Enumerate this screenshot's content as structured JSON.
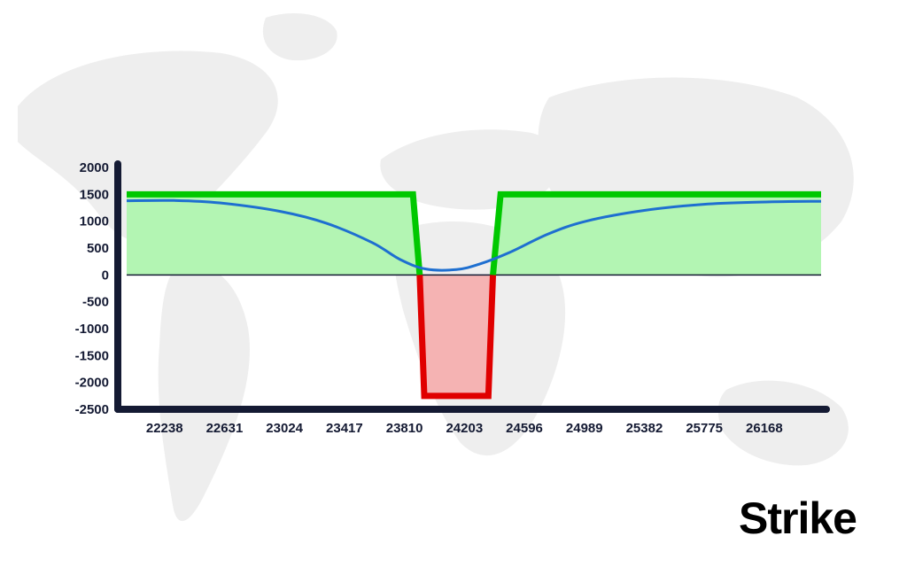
{
  "brand": {
    "logo_text": "Strike",
    "accent_color": "#2d6cf0"
  },
  "colors": {
    "axis": "#141a33",
    "profit_fill": "#b3f5b3",
    "profit_line": "#00c800",
    "loss_fill": "#f5b3b3",
    "loss_line": "#e00000",
    "curve": "#1e6fd0",
    "map": "#eeeeee"
  },
  "chart_data": {
    "type": "line",
    "title": "",
    "xlabel": "",
    "ylabel": "",
    "x_ticks": [
      "22238",
      "22631",
      "23024",
      "23417",
      "23810",
      "24203",
      "24596",
      "24989",
      "25382",
      "25775",
      "26168"
    ],
    "y_ticks": [
      2000,
      1500,
      1000,
      500,
      0,
      -500,
      -1000,
      -1500,
      -2000,
      -2500
    ],
    "xlim": [
      21990,
      26540
    ],
    "ylim": [
      -2500,
      2000
    ],
    "grid": false,
    "legend": "none",
    "series": [
      {
        "kind": "payoff_at_expiry",
        "points": [
          [
            21990,
            1500
          ],
          [
            23866,
            1500
          ],
          [
            23910,
            0
          ],
          [
            23940,
            -2250
          ],
          [
            24360,
            -2250
          ],
          [
            24390,
            0
          ],
          [
            24440,
            1500
          ],
          [
            26540,
            1500
          ]
        ]
      },
      {
        "kind": "current_value_curve",
        "points": [
          [
            21990,
            1380
          ],
          [
            22300,
            1385
          ],
          [
            22600,
            1340
          ],
          [
            23000,
            1180
          ],
          [
            23300,
            960
          ],
          [
            23600,
            600
          ],
          [
            23780,
            290
          ],
          [
            23950,
            110
          ],
          [
            24150,
            100
          ],
          [
            24300,
            200
          ],
          [
            24500,
            420
          ],
          [
            24750,
            760
          ],
          [
            25000,
            1000
          ],
          [
            25382,
            1200
          ],
          [
            25800,
            1320
          ],
          [
            26200,
            1360
          ],
          [
            26540,
            1370
          ]
        ]
      }
    ]
  }
}
